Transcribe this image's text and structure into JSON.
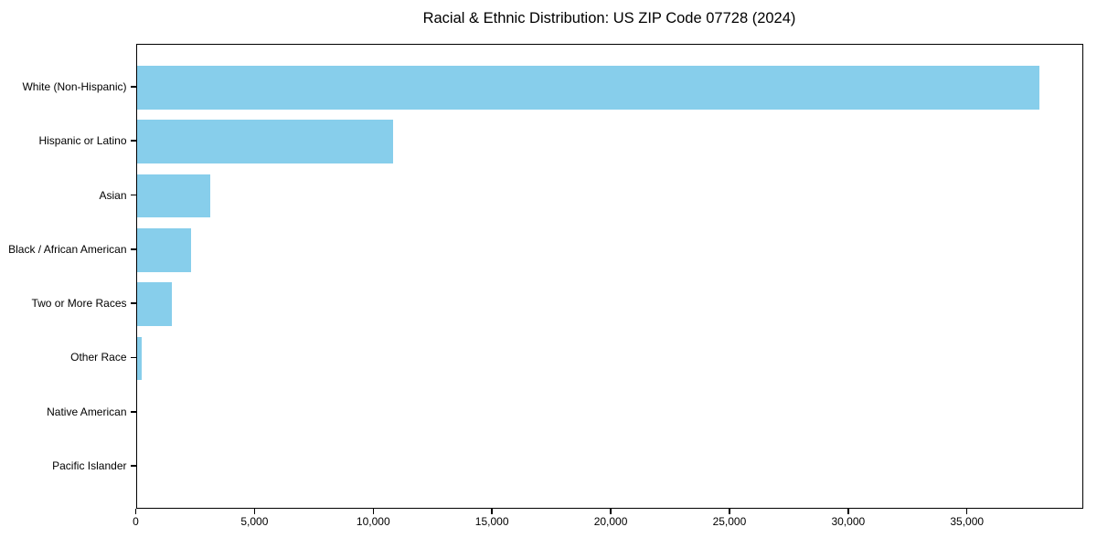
{
  "title": "Racial & Ethnic Distribution: US ZIP Code 07728 (2024)",
  "colors": {
    "bar": "#87CEEB",
    "axis": "#000000",
    "background": "#ffffff",
    "text": "#000000"
  },
  "chart_data": {
    "type": "bar",
    "orientation": "horizontal",
    "title": "Racial & Ethnic Distribution: US ZIP Code 07728 (2024)",
    "categories": [
      "White (Non-Hispanic)",
      "Hispanic or Latino",
      "Asian",
      "Black / African American",
      "Two or More Races",
      "Other Race",
      "Native American",
      "Pacific Islander"
    ],
    "values": [
      38000,
      10800,
      3100,
      2300,
      1500,
      200,
      0,
      0
    ],
    "xlabel": "",
    "ylabel": "",
    "xlim": [
      0,
      39900
    ],
    "x_ticks": [
      0,
      5000,
      10000,
      15000,
      20000,
      25000,
      30000,
      35000
    ],
    "x_tick_labels": [
      "0",
      "5,000",
      "10,000",
      "15,000",
      "20,000",
      "25,000",
      "30,000",
      "35,000"
    ],
    "grid": false,
    "legend": false,
    "bar_color": "#87CEEB"
  }
}
